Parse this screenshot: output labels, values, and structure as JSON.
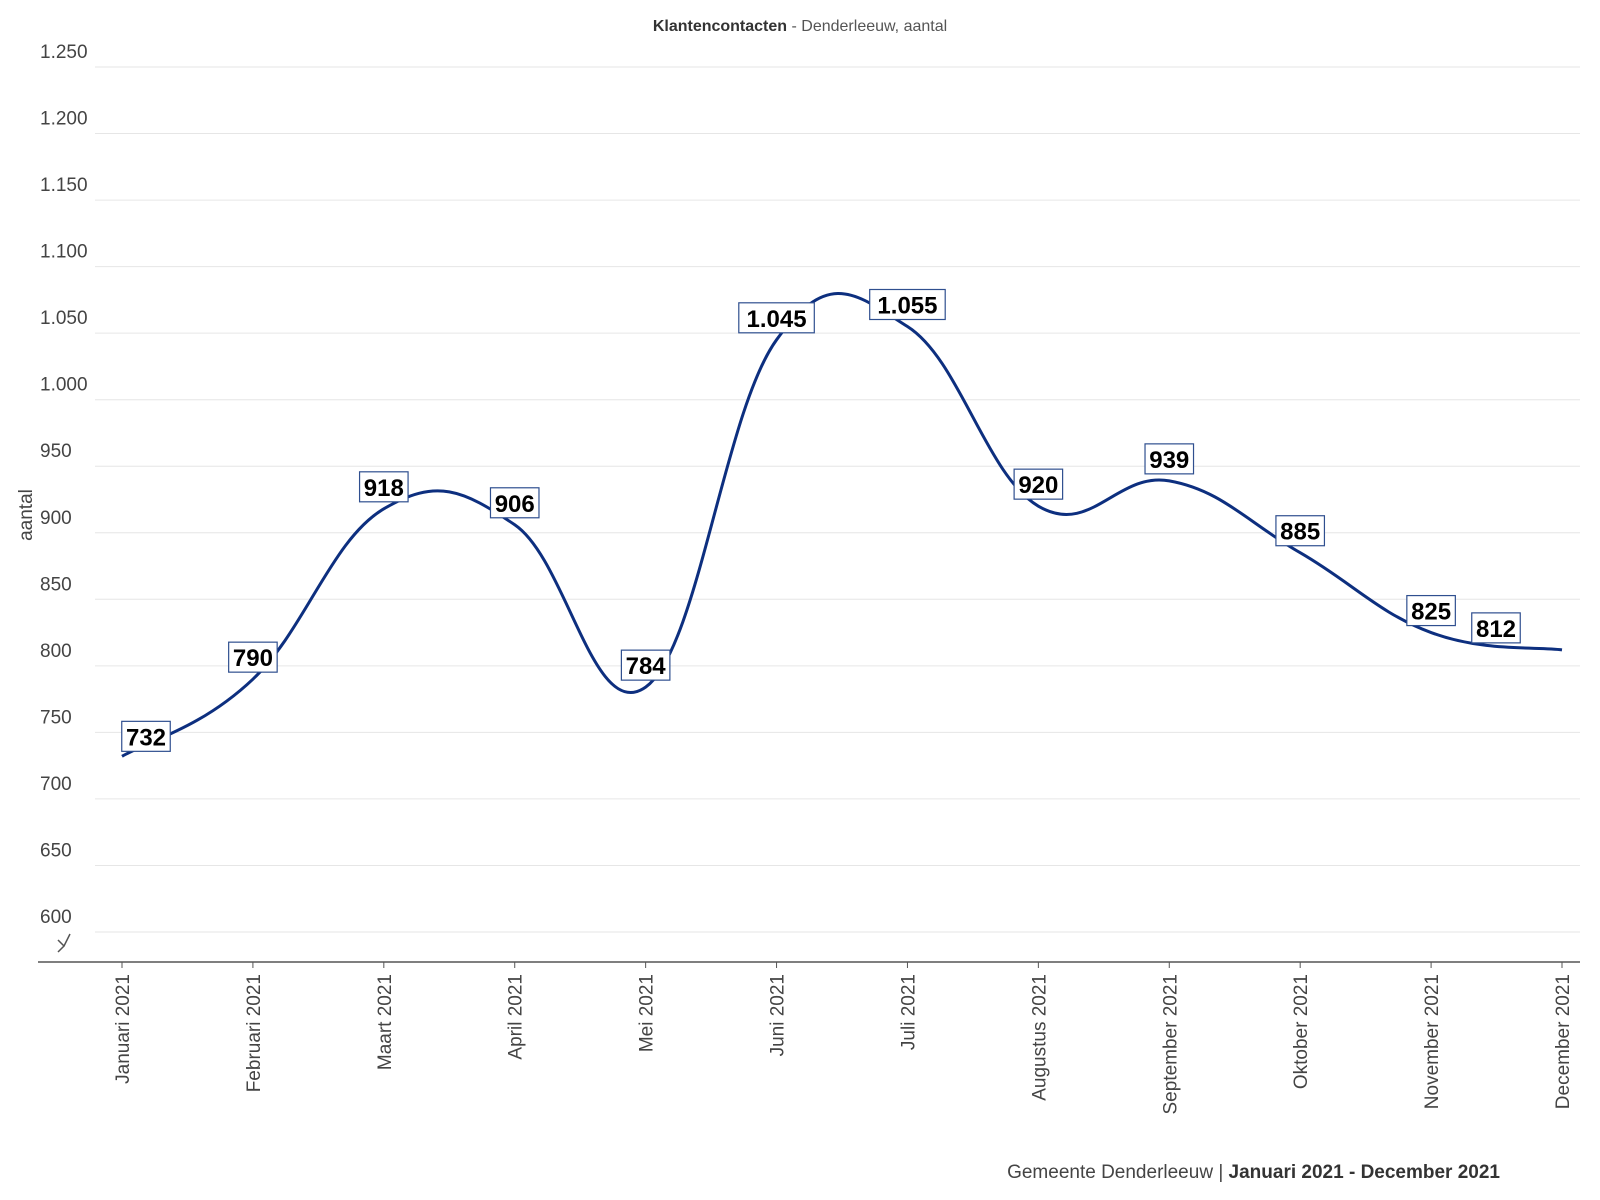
{
  "chart_data": {
    "type": "line",
    "title": "Klantencontacten",
    "subtitle": "Denderleeuw, aantal",
    "ylabel": "aantal",
    "xlabel": "",
    "ylim": [
      600,
      1250
    ],
    "yticks": [
      600,
      650,
      700,
      750,
      800,
      850,
      900,
      950,
      1000,
      1050,
      1100,
      1150,
      1200,
      1250
    ],
    "ytick_labels": [
      "600",
      "650",
      "700",
      "750",
      "800",
      "850",
      "900",
      "950",
      "1.000",
      "1.050",
      "1.100",
      "1.150",
      "1.200",
      "1.250"
    ],
    "axis_break": true,
    "grid": true,
    "categories": [
      "Januari 2021",
      "Februari 2021",
      "Maart 2021",
      "April 2021",
      "Mei 2021",
      "Juni 2021",
      "Juli 2021",
      "Augustus 2021",
      "September 2021",
      "Oktober 2021",
      "November 2021",
      "December 2021"
    ],
    "series": [
      {
        "values": [
          732,
          790,
          918,
          906,
          784,
          1045,
          1055,
          920,
          939,
          885,
          825,
          812
        ],
        "labels": [
          "732",
          "790",
          "918",
          "906",
          "784",
          "1.045",
          "1.055",
          "920",
          "939",
          "885",
          "825",
          "812"
        ],
        "color": "#0d2f7f"
      }
    ]
  },
  "footer": {
    "source": "Gemeente Denderleeuw",
    "separator": " | ",
    "period": "Januari 2021 - December 2021"
  }
}
